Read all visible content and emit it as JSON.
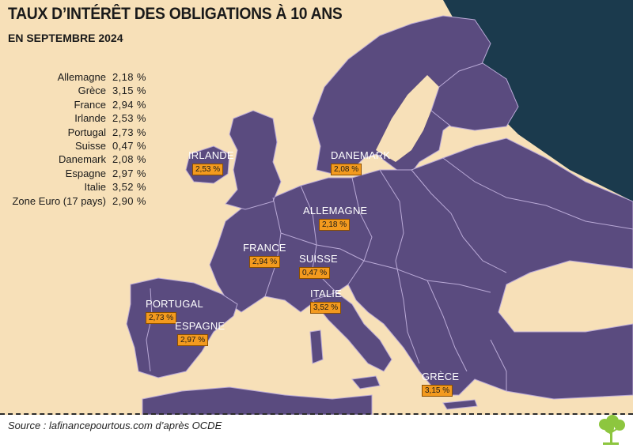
{
  "title": "TAUX D’INTÉRÊT DES OBLIGATIONS À 10 ANS",
  "subtitle": "EN SEPTEMBRE 2024",
  "rates": [
    {
      "country": "Allemagne",
      "value": "2,18 %"
    },
    {
      "country": "Grèce",
      "value": "3,15 %"
    },
    {
      "country": "France",
      "value": "2,94 %"
    },
    {
      "country": "Irlande",
      "value": "2,53 %"
    },
    {
      "country": "Portugal",
      "value": "2,73 %"
    },
    {
      "country": "Suisse",
      "value": "0,47 %"
    },
    {
      "country": "Danemark",
      "value": "2,08 %"
    },
    {
      "country": "Espagne",
      "value": "2,97 %"
    },
    {
      "country": "Italie",
      "value": "3,52 %"
    },
    {
      "country": "Zone Euro (17 pays)",
      "value": "2,90 %"
    }
  ],
  "markers": {
    "irlande": {
      "name": "IRLANDE",
      "value": "2,53 %"
    },
    "danemark": {
      "name": "DANEMARK",
      "value": "2,08 %"
    },
    "allemagne": {
      "name": "ALLEMAGNE",
      "value": "2,18 %"
    },
    "france": {
      "name": "FRANCE",
      "value": "2,94 %"
    },
    "suisse": {
      "name": "SUISSE",
      "value": "0,47 %"
    },
    "italie": {
      "name": "ITALIE",
      "value": "3,52 %"
    },
    "portugal": {
      "name": "PORTUGAL",
      "value": "2,73 %"
    },
    "espagne": {
      "name": "ESPAGNE",
      "value": "2,97 %"
    },
    "grece": {
      "name": "GRÈCE",
      "value": "3,15 %"
    }
  },
  "source": "Source : lafinancepourtous.com d’après OCDE",
  "colors": {
    "sea": "#f7e0b8",
    "land": "#5a4b7f",
    "border": "#b9a9d6",
    "ocean_edge": "#1b3a4d",
    "marker_box": "#f39a1e",
    "logo": "#8dc63f"
  }
}
